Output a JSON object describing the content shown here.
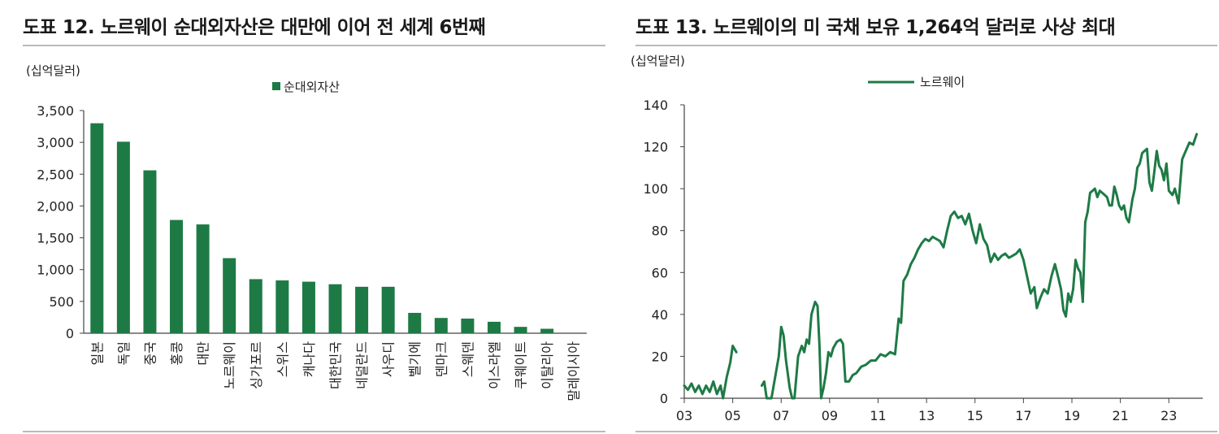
{
  "colors": {
    "green": "#1e7a45",
    "axis": "#444444",
    "rule": "#b9b9b9"
  },
  "chart_data": [
    {
      "type": "bar",
      "title": "도표 12. 노르웨이 순대외자산은 대만에 이어 전 세계 6번째",
      "unit_label": "(십억달러)",
      "categories": [
        "일본",
        "독일",
        "중국",
        "홍콩",
        "대만",
        "노르웨이",
        "싱가포르",
        "스위스",
        "캐나다",
        "대한민국",
        "네덜란드",
        "사우디",
        "벨기에",
        "덴마크",
        "스웨덴",
        "이스라엘",
        "쿠웨이트",
        "이탈리아",
        "말레이시아"
      ],
      "series": [
        {
          "name": "순대외자산",
          "values": [
            3300,
            3010,
            2560,
            1780,
            1710,
            1180,
            850,
            830,
            810,
            770,
            730,
            730,
            320,
            240,
            230,
            180,
            100,
            70,
            0
          ]
        }
      ],
      "ylim": [
        0,
        3500
      ],
      "yticks": [
        "0",
        "500",
        "1,000",
        "1,500",
        "2,000",
        "2,500",
        "3,000",
        "3,500"
      ],
      "legend_position": "top-center",
      "grid": false
    },
    {
      "type": "line",
      "title": "도표 13. 노르웨이의 미 국채 보유 1,264억 달러로 사상 최대",
      "unit_label": "(십억달러)",
      "xticks": [
        "03",
        "05",
        "07",
        "09",
        "11",
        "13",
        "15",
        "17",
        "19",
        "21",
        "23"
      ],
      "xlim": [
        2003.0,
        2024.4
      ],
      "ylim": [
        0,
        140
      ],
      "yticks": [
        "0",
        "20",
        "40",
        "60",
        "80",
        "100",
        "120",
        "140"
      ],
      "legend_position": "top-center",
      "grid": false,
      "series": [
        {
          "name": "노르웨이",
          "segments": [
            [
              [
                2003.0,
                6
              ],
              [
                2003.15,
                4
              ],
              [
                2003.3,
                7
              ],
              [
                2003.45,
                3
              ],
              [
                2003.6,
                6
              ],
              [
                2003.75,
                2
              ],
              [
                2003.9,
                6
              ],
              [
                2004.05,
                3
              ],
              [
                2004.2,
                8
              ],
              [
                2004.35,
                2
              ],
              [
                2004.5,
                6
              ],
              [
                2004.6,
                0
              ],
              [
                2004.75,
                10
              ],
              [
                2004.9,
                17
              ],
              [
                2005.0,
                25
              ],
              [
                2005.1,
                23
              ],
              [
                2005.15,
                22
              ]
            ],
            [
              [
                2006.2,
                6
              ],
              [
                2006.3,
                8
              ],
              [
                2006.4,
                0
              ],
              [
                2006.6,
                0
              ],
              [
                2006.75,
                10
              ],
              [
                2006.9,
                20
              ],
              [
                2007.0,
                34
              ],
              [
                2007.1,
                30
              ],
              [
                2007.2,
                18
              ],
              [
                2007.35,
                5
              ],
              [
                2007.45,
                0
              ],
              [
                2007.55,
                0
              ],
              [
                2007.7,
                20
              ],
              [
                2007.85,
                25
              ],
              [
                2007.95,
                22
              ],
              [
                2008.05,
                28
              ],
              [
                2008.15,
                26
              ],
              [
                2008.25,
                40
              ],
              [
                2008.4,
                46
              ],
              [
                2008.5,
                44
              ],
              [
                2008.58,
                25
              ],
              [
                2008.65,
                0
              ],
              [
                2008.75,
                5
              ],
              [
                2008.85,
                12
              ],
              [
                2008.95,
                22
              ],
              [
                2009.05,
                20
              ],
              [
                2009.15,
                24
              ],
              [
                2009.3,
                27
              ],
              [
                2009.45,
                28
              ],
              [
                2009.55,
                26
              ],
              [
                2009.65,
                8
              ],
              [
                2009.8,
                8
              ],
              [
                2009.95,
                11
              ],
              [
                2010.1,
                12
              ],
              [
                2010.3,
                15
              ],
              [
                2010.5,
                16
              ],
              [
                2010.7,
                18
              ],
              [
                2010.9,
                18
              ],
              [
                2011.1,
                21
              ],
              [
                2011.3,
                20
              ],
              [
                2011.5,
                22
              ],
              [
                2011.7,
                21
              ],
              [
                2011.85,
                38
              ],
              [
                2011.95,
                36
              ],
              [
                2012.05,
                56
              ],
              [
                2012.2,
                59
              ],
              [
                2012.35,
                64
              ],
              [
                2012.5,
                67
              ],
              [
                2012.65,
                71
              ],
              [
                2012.8,
                74
              ],
              [
                2012.95,
                76
              ],
              [
                2013.1,
                75
              ],
              [
                2013.25,
                77
              ],
              [
                2013.4,
                76
              ],
              [
                2013.55,
                75
              ],
              [
                2013.7,
                72
              ],
              [
                2013.85,
                80
              ],
              [
                2014.0,
                87
              ],
              [
                2014.15,
                89
              ],
              [
                2014.3,
                86
              ],
              [
                2014.45,
                87
              ],
              [
                2014.6,
                83
              ],
              [
                2014.75,
                88
              ],
              [
                2014.9,
                80
              ],
              [
                2015.05,
                74
              ],
              [
                2015.2,
                83
              ],
              [
                2015.35,
                76
              ],
              [
                2015.5,
                73
              ],
              [
                2015.65,
                65
              ],
              [
                2015.8,
                69
              ],
              [
                2015.95,
                66
              ],
              [
                2016.1,
                68
              ],
              [
                2016.25,
                69
              ],
              [
                2016.4,
                67
              ],
              [
                2016.55,
                68
              ],
              [
                2016.7,
                69
              ],
              [
                2016.85,
                71
              ],
              [
                2017.0,
                66
              ],
              [
                2017.15,
                58
              ],
              [
                2017.3,
                50
              ],
              [
                2017.45,
                53
              ],
              [
                2017.55,
                43
              ],
              [
                2017.7,
                48
              ],
              [
                2017.85,
                52
              ],
              [
                2018.0,
                50
              ],
              [
                2018.15,
                58
              ],
              [
                2018.3,
                64
              ],
              [
                2018.45,
                57
              ],
              [
                2018.55,
                52
              ],
              [
                2018.65,
                42
              ],
              [
                2018.75,
                39
              ],
              [
                2018.85,
                50
              ],
              [
                2018.95,
                46
              ],
              [
                2019.05,
                52
              ],
              [
                2019.15,
                66
              ],
              [
                2019.25,
                62
              ],
              [
                2019.35,
                60
              ],
              [
                2019.45,
                46
              ],
              [
                2019.55,
                84
              ],
              [
                2019.65,
                89
              ],
              [
                2019.75,
                98
              ],
              [
                2019.85,
                99
              ],
              [
                2019.95,
                100
              ],
              [
                2020.05,
                96
              ],
              [
                2020.15,
                99
              ],
              [
                2020.25,
                98
              ],
              [
                2020.35,
                97
              ],
              [
                2020.45,
                96
              ],
              [
                2020.55,
                92
              ],
              [
                2020.65,
                92
              ],
              [
                2020.75,
                101
              ],
              [
                2020.85,
                97
              ],
              [
                2020.95,
                92
              ],
              [
                2021.05,
                90
              ],
              [
                2021.15,
                92
              ],
              [
                2021.25,
                86
              ],
              [
                2021.35,
                84
              ],
              [
                2021.5,
                95
              ],
              [
                2021.6,
                100
              ],
              [
                2021.7,
                110
              ],
              [
                2021.8,
                112
              ],
              [
                2021.9,
                117
              ],
              [
                2022.0,
                118
              ],
              [
                2022.1,
                119
              ],
              [
                2022.2,
                103
              ],
              [
                2022.3,
                99
              ],
              [
                2022.4,
                108
              ],
              [
                2022.5,
                118
              ],
              [
                2022.6,
                111
              ],
              [
                2022.7,
                109
              ],
              [
                2022.8,
                104
              ],
              [
                2022.9,
                112
              ],
              [
                2023.0,
                99
              ],
              [
                2023.15,
                97
              ],
              [
                2023.25,
                100
              ],
              [
                2023.4,
                93
              ],
              [
                2023.55,
                114
              ],
              [
                2023.7,
                118
              ],
              [
                2023.85,
                122
              ],
              [
                2024.0,
                121
              ],
              [
                2024.15,
                126
              ]
            ]
          ]
        }
      ]
    }
  ]
}
